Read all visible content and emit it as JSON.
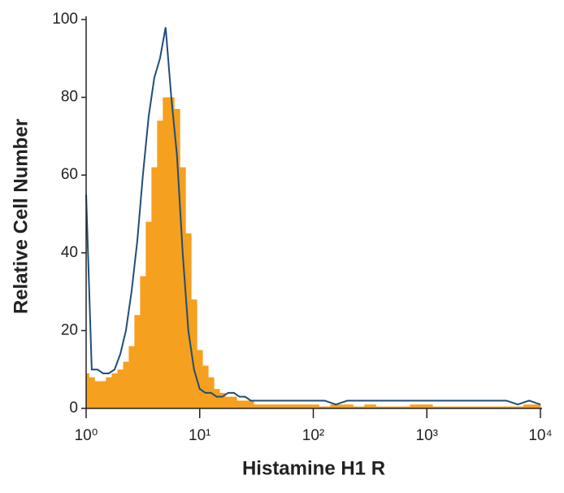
{
  "chart_data": {
    "type": "histogram-overlay",
    "xlabel": "Histamine H1 R",
    "ylabel": "Relative Cell Number",
    "xscale": "log",
    "xlim": [
      1,
      10000
    ],
    "xticks": [
      {
        "value": 1,
        "label": "10⁰"
      },
      {
        "value": 10,
        "label": "10¹"
      },
      {
        "value": 100,
        "label": "10²"
      },
      {
        "value": 1000,
        "label": "10³"
      },
      {
        "value": 10000,
        "label": "10⁴"
      }
    ],
    "ylim": [
      0,
      100
    ],
    "yticks": [
      0,
      20,
      40,
      60,
      80,
      100
    ],
    "x": [
      1,
      1.12,
      1.26,
      1.41,
      1.58,
      1.78,
      2,
      2.24,
      2.51,
      2.82,
      3.16,
      3.55,
      3.98,
      4.47,
      5.01,
      5.62,
      6.31,
      7.08,
      7.94,
      8.91,
      10,
      11.2,
      12.6,
      14.1,
      15.8,
      17.8,
      20,
      22.4,
      25.1,
      28.2,
      31.6,
      39.8,
      50.1,
      63.1,
      79.4,
      100,
      126,
      158,
      200,
      251,
      316,
      398,
      501,
      631,
      794,
      1000,
      1259,
      1585,
      1995,
      2512,
      3162,
      3981,
      5012,
      6310,
      7943,
      10000
    ],
    "series": [
      {
        "style": "filled",
        "color": "#f5a01e",
        "values": [
          9,
          8,
          7,
          7,
          8,
          9,
          10,
          12,
          16,
          24,
          34,
          48,
          62,
          74,
          80,
          80,
          77,
          62,
          45,
          28,
          15,
          11,
          8,
          5,
          4,
          3,
          3,
          2,
          2,
          2,
          1,
          1,
          1,
          1,
          1,
          1,
          0.5,
          1,
          1,
          0.5,
          1,
          0.5,
          0.5,
          0.5,
          1,
          1,
          0.5,
          0.5,
          0.5,
          0.5,
          0.5,
          0.5,
          0.5,
          0.5,
          1,
          1
        ]
      },
      {
        "style": "outline",
        "color": "#1f4e79",
        "values": [
          55,
          10,
          10,
          9,
          9,
          10,
          14,
          20,
          30,
          43,
          60,
          75,
          85,
          90,
          98,
          80,
          65,
          40,
          20,
          10,
          5,
          4,
          4,
          3,
          3,
          4,
          4,
          3,
          3,
          2,
          2,
          2,
          2,
          2,
          2,
          2,
          2,
          1,
          2,
          2,
          2,
          2,
          2,
          2,
          2,
          2,
          2,
          2,
          2,
          2,
          2,
          2,
          2,
          1,
          2,
          1
        ]
      }
    ]
  }
}
